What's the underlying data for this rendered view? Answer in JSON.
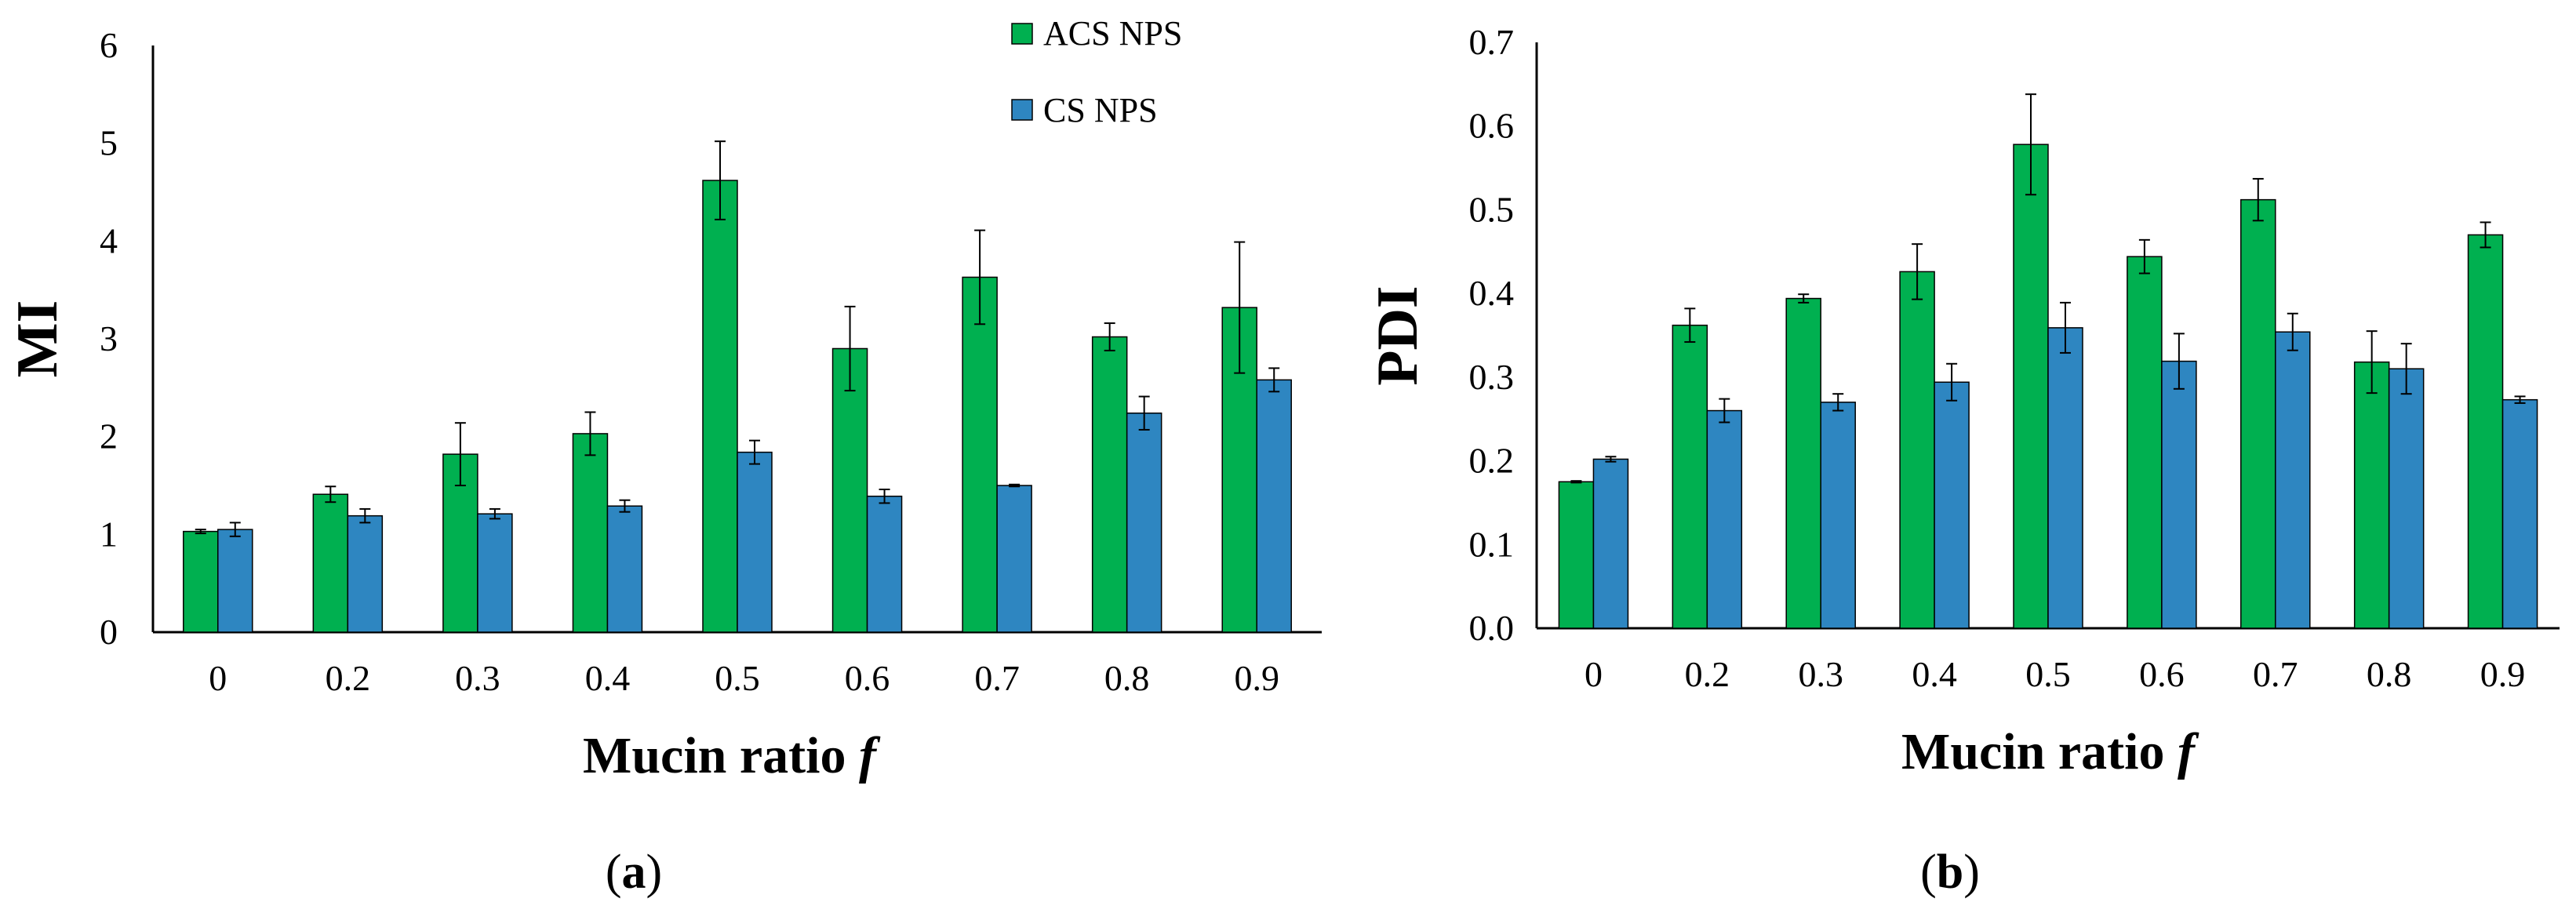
{
  "series_colors": {
    "ACS NPS": "#00b050",
    "CS NPS": "#2e86c1"
  },
  "chart_data": [
    {
      "type": "bar",
      "panel_label": "a",
      "title": "",
      "xlabel": "Mucin ratio",
      "xlabel_var": "f",
      "ylabel": "MI",
      "ylim": [
        0,
        6
      ],
      "yticks": [
        "0",
        "1",
        "2",
        "3",
        "4",
        "5",
        "6"
      ],
      "categories": [
        "0",
        "0.2",
        "0.3",
        "0.4",
        "0.5",
        "0.6",
        "0.7",
        "0.8",
        "0.9"
      ],
      "legend_position": "top-right",
      "series": [
        {
          "name": "ACS NPS",
          "values": [
            1.03,
            1.41,
            1.82,
            2.03,
            4.62,
            2.9,
            3.63,
            3.02,
            3.32
          ],
          "errors": [
            0.02,
            0.08,
            0.32,
            0.22,
            0.4,
            0.43,
            0.48,
            0.14,
            0.67
          ]
        },
        {
          "name": "CS NPS",
          "values": [
            1.05,
            1.19,
            1.21,
            1.29,
            1.84,
            1.39,
            1.5,
            2.24,
            2.58
          ],
          "errors": [
            0.07,
            0.07,
            0.05,
            0.06,
            0.12,
            0.07,
            0.01,
            0.17,
            0.12
          ]
        }
      ]
    },
    {
      "type": "bar",
      "panel_label": "b",
      "title": "",
      "xlabel": "Mucin ratio",
      "xlabel_var": "f",
      "ylabel": "PDI",
      "ylim": [
        0,
        0.7
      ],
      "yticks": [
        "0.0",
        "0.1",
        "0.2",
        "0.3",
        "0.4",
        "0.5",
        "0.6",
        "0.7"
      ],
      "categories": [
        "0",
        "0.2",
        "0.3",
        "0.4",
        "0.5",
        "0.6",
        "0.7",
        "0.8",
        "0.9"
      ],
      "legend_position": "none",
      "series": [
        {
          "name": "ACS NPS",
          "values": [
            0.175,
            0.362,
            0.394,
            0.426,
            0.578,
            0.444,
            0.512,
            0.318,
            0.47
          ],
          "errors": [
            0.001,
            0.02,
            0.005,
            0.033,
            0.06,
            0.02,
            0.025,
            0.037,
            0.015
          ]
        },
        {
          "name": "CS NPS",
          "values": [
            0.202,
            0.26,
            0.27,
            0.294,
            0.359,
            0.319,
            0.354,
            0.31,
            0.273
          ],
          "errors": [
            0.003,
            0.014,
            0.01,
            0.022,
            0.03,
            0.033,
            0.022,
            0.03,
            0.004
          ]
        }
      ]
    }
  ]
}
